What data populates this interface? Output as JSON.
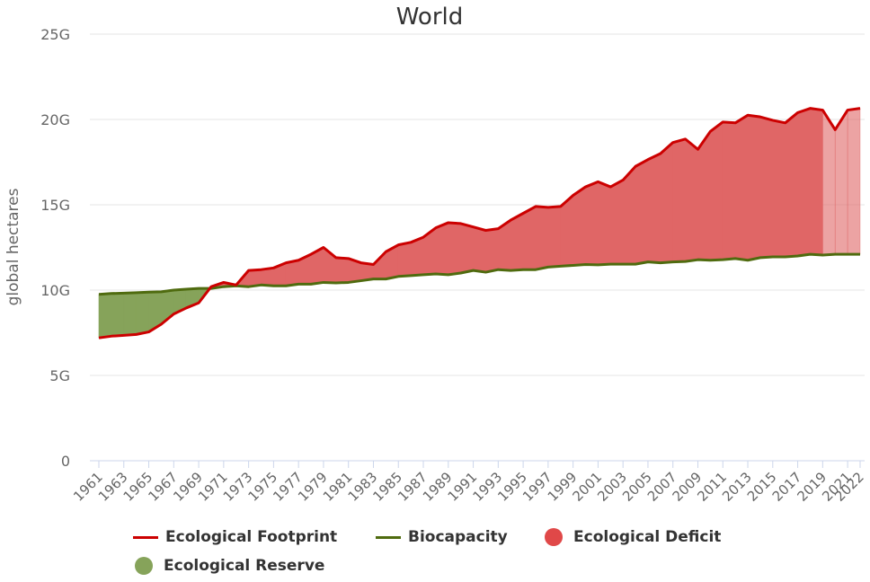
{
  "chart_data": {
    "type": "area",
    "title": "World",
    "xlabel": "",
    "ylabel": "global hectares",
    "ylim": [
      0,
      25000000000
    ],
    "y_ticks": [
      "0",
      "5G",
      "10G",
      "15G",
      "20G",
      "25G"
    ],
    "y_tick_values": [
      0,
      5000000000,
      10000000000,
      15000000000,
      20000000000,
      25000000000
    ],
    "x_tick_labels": [
      "1961",
      "1963",
      "1965",
      "1967",
      "1969",
      "1971",
      "1973",
      "1975",
      "1977",
      "1979",
      "1981",
      "1983",
      "1985",
      "1987",
      "1989",
      "1991",
      "1993",
      "1995",
      "1997",
      "1999",
      "2001",
      "2003",
      "2005",
      "2007",
      "2009",
      "2011",
      "2013",
      "2015",
      "2017",
      "2019",
      "2021",
      "2022"
    ],
    "x": [
      1961,
      1962,
      1963,
      1964,
      1965,
      1966,
      1967,
      1968,
      1969,
      1970,
      1971,
      1972,
      1973,
      1974,
      1975,
      1976,
      1977,
      1978,
      1979,
      1980,
      1981,
      1982,
      1983,
      1984,
      1985,
      1986,
      1987,
      1988,
      1989,
      1990,
      1991,
      1992,
      1993,
      1994,
      1995,
      1996,
      1997,
      1998,
      1999,
      2000,
      2001,
      2002,
      2003,
      2004,
      2005,
      2006,
      2007,
      2008,
      2009,
      2010,
      2011,
      2012,
      2013,
      2014,
      2015,
      2016,
      2017,
      2018,
      2019,
      2020,
      2021,
      2022
    ],
    "grid": true,
    "legend_position": "bottom",
    "projected_from": 2019,
    "series": [
      {
        "name": "Ecological Footprint",
        "kind": "line",
        "color": "#cc0000",
        "values": [
          7.2,
          7.3,
          7.35,
          7.4,
          7.55,
          8.0,
          8.6,
          8.95,
          9.25,
          10.2,
          10.45,
          10.3,
          11.15,
          11.2,
          11.3,
          11.6,
          11.75,
          12.1,
          12.5,
          11.9,
          11.85,
          11.6,
          11.5,
          12.25,
          12.65,
          12.8,
          13.1,
          13.65,
          13.95,
          13.9,
          13.7,
          13.5,
          13.6,
          14.1,
          14.5,
          14.9,
          14.85,
          14.9,
          15.55,
          16.05,
          16.35,
          16.05,
          16.45,
          17.25,
          17.65,
          18.0,
          18.65,
          18.85,
          18.25,
          19.3,
          19.85,
          19.8,
          20.25,
          20.15,
          19.95,
          19.8,
          20.4,
          20.65,
          20.55,
          19.4,
          20.55,
          20.65
        ],
        "unit": "G"
      },
      {
        "name": "Biocapacity",
        "kind": "line",
        "color": "#4f6b0f",
        "values": [
          9.75,
          9.8,
          9.82,
          9.85,
          9.88,
          9.9,
          10.0,
          10.05,
          10.1,
          10.1,
          10.2,
          10.25,
          10.2,
          10.3,
          10.25,
          10.25,
          10.35,
          10.35,
          10.45,
          10.42,
          10.45,
          10.55,
          10.65,
          10.65,
          10.8,
          10.85,
          10.9,
          10.95,
          10.9,
          11.0,
          11.15,
          11.05,
          11.2,
          11.15,
          11.2,
          11.2,
          11.35,
          11.4,
          11.45,
          11.5,
          11.48,
          11.52,
          11.52,
          11.52,
          11.65,
          11.6,
          11.65,
          11.68,
          11.78,
          11.75,
          11.78,
          11.85,
          11.75,
          11.9,
          11.95,
          11.95,
          12.0,
          12.1,
          12.05,
          12.1,
          12.1,
          12.1
        ],
        "unit": "G"
      },
      {
        "name": "Ecological Deficit",
        "kind": "area",
        "color": "#e06666"
      },
      {
        "name": "Ecological Reserve",
        "kind": "area",
        "color": "#86a35a"
      }
    ]
  },
  "legend": {
    "footprint": "Ecological Footprint",
    "biocapacity": "Biocapacity",
    "deficit": "Ecological Deficit",
    "reserve": "Ecological Reserve"
  }
}
